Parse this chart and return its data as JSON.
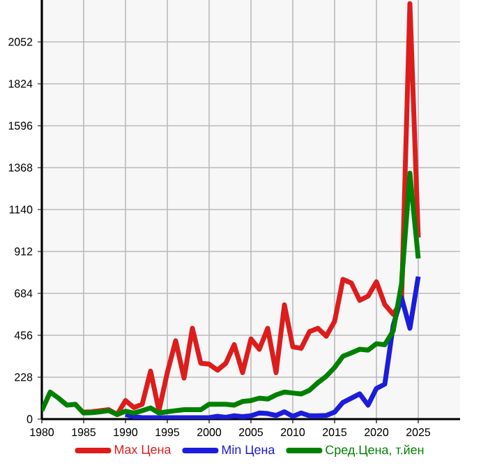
{
  "chart_data": {
    "type": "line",
    "x": [
      1980,
      1981,
      1982,
      1983,
      1984,
      1985,
      1986,
      1987,
      1988,
      1989,
      1990,
      1991,
      1992,
      1993,
      1994,
      1995,
      1996,
      1997,
      1998,
      1999,
      2000,
      2001,
      2002,
      2003,
      2004,
      2005,
      2006,
      2007,
      2008,
      2009,
      2010,
      2011,
      2012,
      2013,
      2014,
      2015,
      2016,
      2017,
      2018,
      2019,
      2020,
      2021,
      2022,
      2023,
      2024,
      2025
    ],
    "series": [
      {
        "name": "Max Цена",
        "color": "#dd1c1c",
        "values": [
          null,
          null,
          null,
          null,
          null,
          38,
          40,
          46,
          51,
          25,
          101,
          63,
          81,
          261,
          46,
          253,
          426,
          223,
          494,
          304,
          299,
          266,
          304,
          405,
          253,
          436,
          380,
          494,
          253,
          621,
          393,
          385,
          476,
          494,
          451,
          532,
          760,
          740,
          646,
          669,
          747,
          623,
          570,
          640,
          2260,
          988
        ]
      },
      {
        "name": "Min Цена",
        "color": "#1c1cdd",
        "values": [
          null,
          null,
          null,
          null,
          null,
          null,
          null,
          null,
          null,
          null,
          25,
          13,
          8,
          8,
          8,
          8,
          8,
          8,
          8,
          8,
          8,
          15,
          10,
          18,
          13,
          18,
          33,
          30,
          20,
          40,
          15,
          33,
          18,
          18,
          20,
          38,
          91,
          114,
          137,
          76,
          167,
          190,
          509,
          661,
          494,
          775
        ]
      },
      {
        "name": "Сред.Цена, т.йен",
        "color": "#008000",
        "values": [
          46,
          147,
          114,
          76,
          81,
          33,
          35,
          40,
          46,
          25,
          43,
          33,
          46,
          61,
          33,
          40,
          46,
          51,
          51,
          51,
          81,
          81,
          81,
          76,
          96,
          101,
          114,
          109,
          132,
          147,
          142,
          137,
          157,
          198,
          233,
          281,
          342,
          360,
          380,
          375,
          410,
          405,
          479,
          737,
          1338,
          874
        ]
      }
    ],
    "xlim": [
      1980,
      2030
    ],
    "xticks": [
      1980,
      1985,
      1990,
      1995,
      2000,
      2005,
      2010,
      2015,
      2020,
      2025
    ],
    "ylim": [
      0,
      2280
    ],
    "yticks": [
      0,
      228,
      456,
      684,
      912,
      1140,
      1368,
      1596,
      1824,
      2052
    ],
    "grid": true,
    "legend": "bottom",
    "line_style": "solid",
    "marker": "none"
  }
}
